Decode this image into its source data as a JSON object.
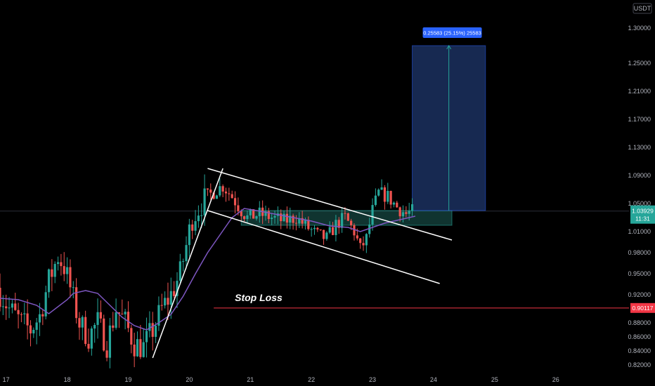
{
  "colors": {
    "background": "#000000",
    "bull": "#26a69a",
    "bear": "#ef5350",
    "ma": "#7e57c2",
    "trend": "#ffffff",
    "target_zone": "#1a2e5a",
    "entry_zone": "#1e5f57",
    "stop_line": "#f23645",
    "price_badge": "#26a69a",
    "stop_badge": "#f23645",
    "label_blue": "#2962ff",
    "axis_text": "#b2b5be"
  },
  "chart_data": {
    "type": "candlestick",
    "currency": "USDT",
    "ylim": [
      0.81,
      1.34
    ],
    "xlim": [
      16.9,
      27.2
    ],
    "x_ticks": [
      {
        "x": 17,
        "label": "17"
      },
      {
        "x": 18,
        "label": "18"
      },
      {
        "x": 19,
        "label": "19"
      },
      {
        "x": 20,
        "label": "20"
      },
      {
        "x": 21,
        "label": "21"
      },
      {
        "x": 22,
        "label": "22"
      },
      {
        "x": 23,
        "label": "23"
      },
      {
        "x": 24,
        "label": "24"
      },
      {
        "x": 25,
        "label": "25"
      },
      {
        "x": 26,
        "label": "26"
      }
    ],
    "y_ticks": [
      {
        "y": 1.3,
        "label": "1.30000"
      },
      {
        "y": 1.25,
        "label": "1.25000"
      },
      {
        "y": 1.21,
        "label": "1.21000"
      },
      {
        "y": 1.17,
        "label": "1.17000"
      },
      {
        "y": 1.13,
        "label": "1.13000"
      },
      {
        "y": 1.09,
        "label": "1.09000"
      },
      {
        "y": 1.05,
        "label": "1.05000"
      },
      {
        "y": 1.01,
        "label": "1.01000"
      },
      {
        "y": 0.98,
        "label": "0.98000"
      },
      {
        "y": 0.95,
        "label": "0.95000"
      },
      {
        "y": 0.92,
        "label": "0.92000"
      },
      {
        "y": 0.88,
        "label": "0.88000"
      },
      {
        "y": 0.86,
        "label": "0.86000"
      },
      {
        "y": 0.84,
        "label": "0.84000"
      },
      {
        "y": 0.82,
        "label": "0.82000"
      }
    ],
    "candle_anchors": [
      [
        16.9,
        0.93
      ],
      [
        17.1,
        0.9
      ],
      [
        17.3,
        0.88
      ],
      [
        17.45,
        0.87
      ],
      [
        17.6,
        0.89
      ],
      [
        17.75,
        0.94
      ],
      [
        17.9,
        0.975
      ],
      [
        18.0,
        0.96
      ],
      [
        18.1,
        0.93
      ],
      [
        18.25,
        0.88
      ],
      [
        18.4,
        0.86
      ],
      [
        18.55,
        0.88
      ],
      [
        18.7,
        0.85
      ],
      [
        18.85,
        0.9
      ],
      [
        19.0,
        0.88
      ],
      [
        19.15,
        0.85
      ],
      [
        19.3,
        0.845
      ],
      [
        19.45,
        0.87
      ],
      [
        19.6,
        0.9
      ],
      [
        19.75,
        0.92
      ],
      [
        19.9,
        0.95
      ],
      [
        20.0,
        0.99
      ],
      [
        20.1,
        1.03
      ],
      [
        20.25,
        1.05
      ],
      [
        20.35,
        1.06
      ],
      [
        20.5,
        1.07
      ],
      [
        20.6,
        1.075
      ],
      [
        20.75,
        1.06
      ],
      [
        20.9,
        1.04
      ],
      [
        21.0,
        1.03
      ],
      [
        21.2,
        1.035
      ],
      [
        21.4,
        1.03
      ],
      [
        21.6,
        1.025
      ],
      [
        21.8,
        1.03
      ],
      [
        22.0,
        1.015
      ],
      [
        22.15,
        1.005
      ],
      [
        22.3,
        1.0
      ],
      [
        22.45,
        1.02
      ],
      [
        22.6,
        1.03
      ],
      [
        22.75,
        1.01
      ],
      [
        22.85,
        0.985
      ],
      [
        22.95,
        1.0
      ],
      [
        23.05,
        1.04
      ],
      [
        23.15,
        1.065
      ],
      [
        23.3,
        1.06
      ],
      [
        23.45,
        1.045
      ],
      [
        23.6,
        1.035
      ],
      [
        23.7,
        1.039
      ]
    ],
    "moving_average": [
      [
        16.9,
        0.915
      ],
      [
        17.2,
        0.913
      ],
      [
        17.5,
        0.905
      ],
      [
        17.7,
        0.893
      ],
      [
        18.0,
        0.913
      ],
      [
        18.1,
        0.922
      ],
      [
        18.3,
        0.926
      ],
      [
        18.5,
        0.922
      ],
      [
        18.7,
        0.905
      ],
      [
        18.9,
        0.888
      ],
      [
        19.1,
        0.876
      ],
      [
        19.3,
        0.87
      ],
      [
        19.5,
        0.88
      ],
      [
        19.7,
        0.892
      ],
      [
        19.9,
        0.918
      ],
      [
        20.1,
        0.95
      ],
      [
        20.3,
        0.98
      ],
      [
        20.5,
        1.005
      ],
      [
        20.7,
        1.03
      ],
      [
        20.9,
        1.043
      ],
      [
        21.1,
        1.04
      ],
      [
        21.4,
        1.035
      ],
      [
        21.7,
        1.03
      ],
      [
        22.0,
        1.025
      ],
      [
        22.3,
        1.018
      ],
      [
        22.6,
        1.016
      ],
      [
        22.8,
        1.01
      ],
      [
        23.0,
        1.016
      ],
      [
        23.2,
        1.022
      ],
      [
        23.5,
        1.028
      ],
      [
        23.7,
        1.032
      ]
    ],
    "drawings": {
      "channel_upper": [
        [
          20.3,
          1.1
        ],
        [
          24.3,
          0.998
        ]
      ],
      "channel_lower": [
        [
          20.3,
          1.04
        ],
        [
          24.1,
          0.936
        ]
      ],
      "impulse_line": [
        [
          19.4,
          0.83
        ],
        [
          20.55,
          1.1
        ]
      ],
      "entry_zone": {
        "x0": 20.85,
        "x1": 24.3,
        "y0": 1.019,
        "y1": 1.04
      },
      "target_zone": {
        "x0": 23.65,
        "x1": 24.85,
        "y0": 1.04,
        "y1": 1.275
      },
      "target_arrow": {
        "x": 24.25,
        "y0": 1.04,
        "y1": 1.275
      },
      "stop_level": 0.90117,
      "stop_start_x": 20.4
    },
    "annotations": {
      "measure_label": "0.25583 (25.15%) 25583",
      "stop_label": "Stop Loss",
      "stop_price": "0.90117",
      "current_price": "1.03929",
      "countdown": "11:31",
      "current_value": 1.03929
    }
  }
}
